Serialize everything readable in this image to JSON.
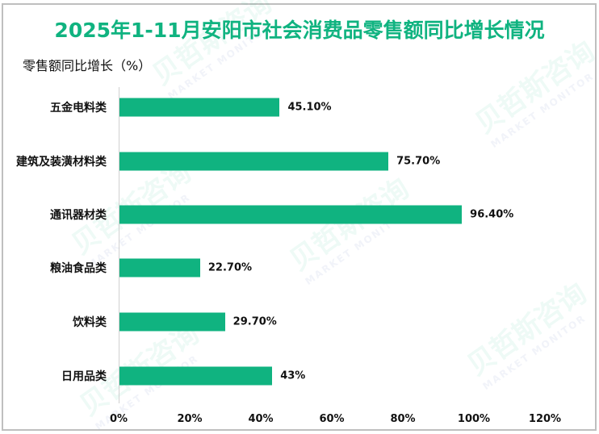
{
  "title": "2025年1-11月安阳市社会消费品零售额同比增长情况",
  "watermark": {
    "cn": "贝哲斯咨询",
    "en": "MARKET MONITOR"
  },
  "colors": {
    "bar": "#10b380",
    "title": "#10b380",
    "border": "#bfbfbf",
    "axis": "#d0d0d0"
  },
  "chart_data": {
    "type": "bar",
    "orientation": "horizontal",
    "title": "2025年1-11月安阳市社会消费品零售额同比增长情况",
    "ylabel": "零售额同比增长（%）",
    "xlabel": "",
    "categories": [
      "五金电料类",
      "建筑及装潢材料类",
      "通讯器材类",
      "粮油食品类",
      "饮料类",
      "日用品类"
    ],
    "values": [
      45.1,
      75.7,
      96.4,
      22.7,
      29.7,
      43
    ],
    "value_labels": [
      "45.10%",
      "75.70%",
      "96.40%",
      "22.70%",
      "29.70%",
      "43%"
    ],
    "xlim": [
      0,
      120
    ],
    "xticks": [
      "0%",
      "20%",
      "40%",
      "60%",
      "80%",
      "100%",
      "120%"
    ],
    "grid": false,
    "legend": null
  }
}
